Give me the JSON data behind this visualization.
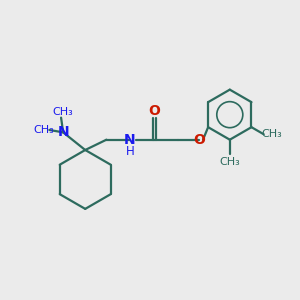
{
  "bg_color": "#ebebeb",
  "bond_color": "#2d6b5e",
  "N_color": "#1a1aee",
  "O_color": "#cc1a00",
  "linewidth": 1.6,
  "figsize": [
    3.0,
    3.0
  ],
  "dpi": 100,
  "xlim": [
    0,
    10
  ],
  "ylim": [
    0,
    10
  ]
}
